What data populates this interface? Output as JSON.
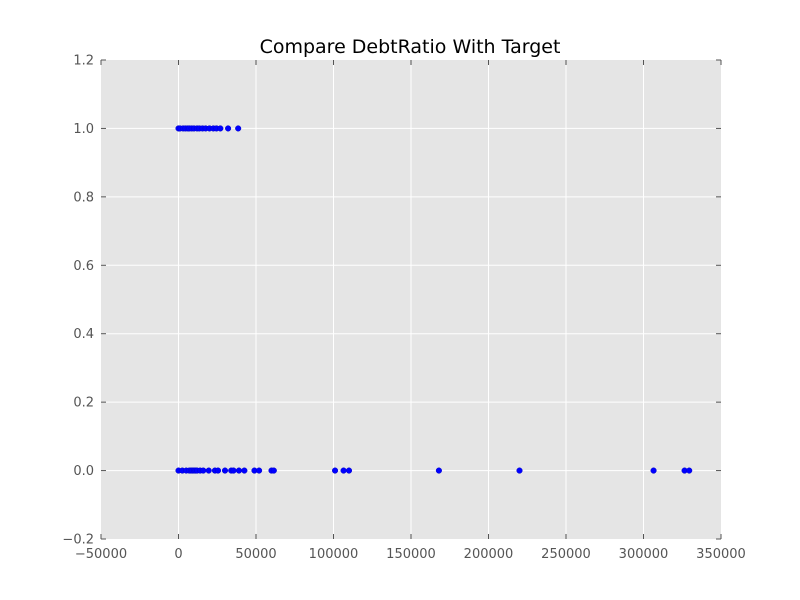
{
  "chart_data": {
    "type": "scatter",
    "title": "Compare DebtRatio With Target",
    "xlabel": "",
    "ylabel": "",
    "xlim": [
      -50000,
      350000
    ],
    "ylim": [
      -0.2,
      1.2
    ],
    "xticks": [
      -50000,
      0,
      50000,
      100000,
      150000,
      200000,
      250000,
      300000,
      350000
    ],
    "xtick_labels": [
      "−50000",
      "0",
      "50000",
      "100000",
      "150000",
      "200000",
      "250000",
      "300000",
      "350000"
    ],
    "yticks": [
      -0.2,
      0.0,
      0.2,
      0.4,
      0.6,
      0.8,
      1.0,
      1.2
    ],
    "ytick_labels": [
      "−0.2",
      "0.0",
      "0.2",
      "0.4",
      "0.6",
      "0.8",
      "1.0",
      "1.2"
    ],
    "grid": true,
    "marker_color": "#0000ff",
    "background_color": "#e5e5e5",
    "series": [
      {
        "x": [
          0,
          1000,
          3000,
          4500,
          6000,
          7000,
          8500,
          10000,
          12000,
          13500,
          15500,
          17500,
          20000,
          22500,
          24500,
          27000,
          32000,
          38500,
          0,
          2500,
          5000,
          7000,
          8000,
          9000,
          10000,
          11000,
          12000,
          14000,
          16000,
          19500,
          23500,
          25500,
          30000,
          34000,
          35500,
          39000,
          42500,
          49000,
          52000,
          60000,
          61500,
          101000,
          106500,
          110000,
          168000,
          220000,
          306500,
          326500,
          329500
        ],
        "y": [
          1,
          1,
          1,
          1,
          1,
          1,
          1,
          1,
          1,
          1,
          1,
          1,
          1,
          1,
          1,
          1,
          1,
          1,
          0,
          0,
          0,
          0,
          0,
          0,
          0,
          0,
          0,
          0,
          0,
          0,
          0,
          0,
          0,
          0,
          0,
          0,
          0,
          0,
          0,
          0,
          0,
          0,
          0,
          0,
          0,
          0,
          0,
          0,
          0
        ]
      }
    ]
  }
}
